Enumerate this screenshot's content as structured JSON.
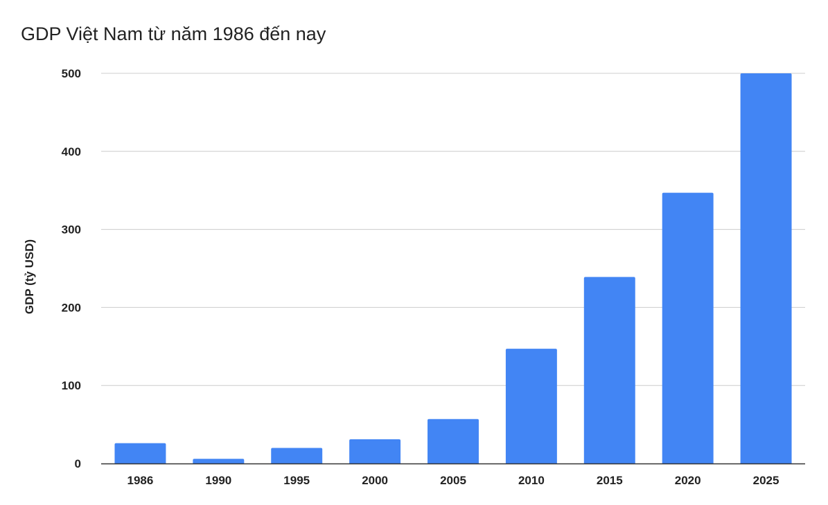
{
  "chart_data": {
    "type": "bar",
    "title": "GDP Việt Nam từ năm 1986 đến nay",
    "xlabel": "",
    "ylabel": "GDP (tỷ USD)",
    "categories": [
      "1986",
      "1990",
      "1995",
      "2000",
      "2005",
      "2010",
      "2015",
      "2020",
      "2025"
    ],
    "values": [
      26,
      6,
      20,
      31,
      57,
      147,
      239,
      347,
      500
    ],
    "ylim": [
      0,
      500
    ],
    "yticks": [
      0,
      100,
      200,
      300,
      400,
      500
    ],
    "grid": true,
    "legend": "none",
    "bar_color": "#4285f4",
    "grid_color": "#cccccc",
    "axis_color": "#333333"
  }
}
